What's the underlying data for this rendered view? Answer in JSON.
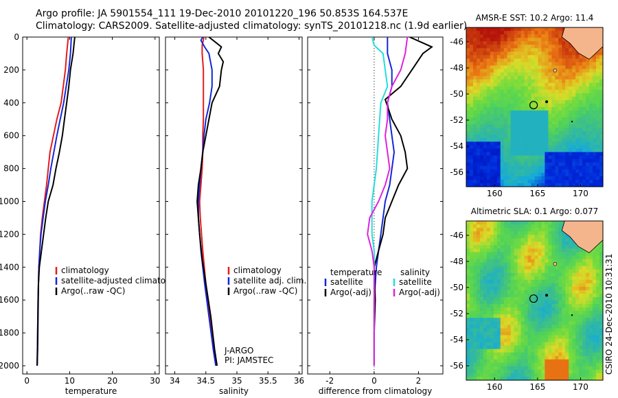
{
  "header": {
    "line1": "Argo profile: JA 5901554_111 19-Dec-2010 20101220_196 50.853S 164.537E",
    "line2": "Climatology: CARS2009. Satellite-adjusted climatology: synTS_20101218.nc (1.9d earlier)"
  },
  "depth_ticks": [
    "0",
    "200",
    "400",
    "600",
    "800",
    "1000",
    "1200",
    "1400",
    "1600",
    "1800",
    "2000"
  ],
  "colors": {
    "red": "#e21b1b",
    "blue": "#1226d6",
    "black": "#000000",
    "cyan": "#22dddd",
    "magenta": "#e020e0"
  },
  "chart_data": [
    {
      "type": "line",
      "xlabel": "temperature",
      "xlim": [
        -1,
        31
      ],
      "ylim": [
        2050,
        0
      ],
      "xticks": [
        0,
        10,
        20,
        30
      ],
      "xtick_labels": [
        "0",
        "10",
        "20",
        "30"
      ],
      "legend_placement": "lower-right",
      "series": [
        {
          "name": "climatology",
          "color": "red",
          "points": [
            [
              9.7,
              0
            ],
            [
              9.5,
              50
            ],
            [
              9.3,
              100
            ],
            [
              9,
              200
            ],
            [
              8.5,
              300
            ],
            [
              8,
              400
            ],
            [
              7,
              500
            ],
            [
              6.2,
              600
            ],
            [
              5.4,
              700
            ],
            [
              5,
              800
            ],
            [
              4.6,
              900
            ],
            [
              4.1,
              1000
            ],
            [
              3.6,
              1100
            ],
            [
              3.2,
              1200
            ],
            [
              3,
              1300
            ],
            [
              2.8,
              1400
            ],
            [
              2.6,
              1600
            ],
            [
              2.5,
              1800
            ],
            [
              2.4,
              2000
            ]
          ]
        },
        {
          "name": "satellite-adjusted climatology",
          "color": "blue",
          "points": [
            [
              10.4,
              0
            ],
            [
              10.2,
              100
            ],
            [
              9.8,
              200
            ],
            [
              9.2,
              300
            ],
            [
              8.6,
              400
            ],
            [
              7.8,
              500
            ],
            [
              7,
              600
            ],
            [
              6.3,
              700
            ],
            [
              5.6,
              800
            ],
            [
              5,
              900
            ],
            [
              4.3,
              1000
            ],
            [
              3.8,
              1100
            ],
            [
              3.3,
              1200
            ],
            [
              3,
              1300
            ],
            [
              2.8,
              1400
            ],
            [
              2.6,
              1600
            ],
            [
              2.5,
              1800
            ],
            [
              2.4,
              2000
            ]
          ]
        },
        {
          "name": "Argo(..raw -QC)",
          "color": "black",
          "points": [
            [
              11.2,
              0
            ],
            [
              11,
              50
            ],
            [
              10.8,
              100
            ],
            [
              10.5,
              150
            ],
            [
              10.2,
              200
            ],
            [
              9.8,
              300
            ],
            [
              9.3,
              400
            ],
            [
              8.8,
              500
            ],
            [
              8.3,
              600
            ],
            [
              7.6,
              700
            ],
            [
              6.8,
              800
            ],
            [
              6.1,
              900
            ],
            [
              5,
              1000
            ],
            [
              4.4,
              1100
            ],
            [
              3.9,
              1200
            ],
            [
              3.4,
              1300
            ],
            [
              2.9,
              1400
            ],
            [
              2.7,
              1500
            ],
            [
              2.6,
              1700
            ],
            [
              2.5,
              1900
            ],
            [
              2.4,
              2000
            ]
          ]
        }
      ],
      "legend": [
        "climatology",
        "satellite-adjusted climatology",
        "Argo(..raw -QC)"
      ]
    },
    {
      "type": "line",
      "xlabel": "salinity",
      "xlim": [
        33.85,
        36.05
      ],
      "ylim": [
        2050,
        0
      ],
      "xticks": [
        34,
        34.5,
        35,
        35.5,
        36
      ],
      "xtick_labels": [
        "34",
        "34.5",
        "35",
        "35.5",
        "36"
      ],
      "legend_placement": "lower-right",
      "series": [
        {
          "name": "climatology",
          "color": "red",
          "points": [
            [
              34.47,
              0
            ],
            [
              34.44,
              50
            ],
            [
              34.44,
              100
            ],
            [
              34.45,
              150
            ],
            [
              34.46,
              200
            ],
            [
              34.46,
              400
            ],
            [
              34.46,
              500
            ],
            [
              34.45,
              600
            ],
            [
              34.45,
              700
            ],
            [
              34.44,
              800
            ],
            [
              34.42,
              900
            ],
            [
              34.4,
              1000
            ],
            [
              34.41,
              1100
            ],
            [
              34.45,
              1300
            ],
            [
              34.5,
              1500
            ],
            [
              34.56,
              1700
            ],
            [
              34.62,
              1900
            ],
            [
              34.66,
              2000
            ]
          ]
        },
        {
          "name": "satellite adj. clim.",
          "color": "blue",
          "points": [
            [
              34.45,
              0
            ],
            [
              34.42,
              20
            ],
            [
              34.48,
              60
            ],
            [
              34.55,
              100
            ],
            [
              34.6,
              200
            ],
            [
              34.6,
              300
            ],
            [
              34.56,
              400
            ],
            [
              34.5,
              500
            ],
            [
              34.47,
              600
            ],
            [
              34.45,
              700
            ],
            [
              34.42,
              800
            ],
            [
              34.4,
              900
            ],
            [
              34.38,
              1000
            ],
            [
              34.38,
              1100
            ],
            [
              34.42,
              1300
            ],
            [
              34.48,
              1500
            ],
            [
              34.55,
              1700
            ],
            [
              34.62,
              1900
            ],
            [
              34.66,
              2000
            ]
          ]
        },
        {
          "name": "Argo(..raw -QC)",
          "color": "black",
          "points": [
            [
              34.55,
              0
            ],
            [
              34.65,
              30
            ],
            [
              34.75,
              60
            ],
            [
              34.7,
              100
            ],
            [
              34.78,
              150
            ],
            [
              34.75,
              200
            ],
            [
              34.72,
              300
            ],
            [
              34.6,
              400
            ],
            [
              34.55,
              500
            ],
            [
              34.5,
              600
            ],
            [
              34.45,
              700
            ],
            [
              34.42,
              800
            ],
            [
              34.38,
              900
            ],
            [
              34.36,
              1000
            ],
            [
              34.38,
              1100
            ],
            [
              34.4,
              1200
            ],
            [
              34.44,
              1350
            ],
            [
              34.5,
              1500
            ],
            [
              34.58,
              1700
            ],
            [
              34.64,
              1900
            ],
            [
              34.68,
              2000
            ]
          ]
        }
      ],
      "legend": [
        "climatology",
        "satellite adj. clim.",
        "Argo(..raw -QC)"
      ],
      "annotation": [
        "J-ARGO",
        "PI: JAMSTEC"
      ]
    },
    {
      "type": "line",
      "xlabel": "difference from climatology",
      "xlim": [
        -3,
        3.1
      ],
      "ylim": [
        2050,
        0
      ],
      "xticks": [
        -2,
        0,
        2
      ],
      "xtick_labels": [
        "-2",
        "0",
        "2"
      ],
      "legend_placement": "lower-center",
      "series": [
        {
          "name": "temperature satellite",
          "color": "blue",
          "points": [
            [
              0.6,
              0
            ],
            [
              0.6,
              100
            ],
            [
              0.8,
              200
            ],
            [
              0.8,
              300
            ],
            [
              0.6,
              400
            ],
            [
              0.8,
              600
            ],
            [
              0.9,
              700
            ],
            [
              0.7,
              900
            ],
            [
              0.5,
              1000
            ],
            [
              0.3,
              1200
            ],
            [
              0.1,
              1400
            ],
            [
              0,
              1600
            ],
            [
              0,
              2000
            ]
          ]
        },
        {
          "name": "temperature Argo(-adj)",
          "color": "black",
          "points": [
            [
              1.6,
              0
            ],
            [
              2.1,
              30
            ],
            [
              2.6,
              60
            ],
            [
              2.2,
              100
            ],
            [
              1.7,
              200
            ],
            [
              1.2,
              300
            ],
            [
              0.5,
              380
            ],
            [
              0.8,
              500
            ],
            [
              1.2,
              600
            ],
            [
              1.4,
              700
            ],
            [
              1.5,
              800
            ],
            [
              1.1,
              900
            ],
            [
              0.8,
              1000
            ],
            [
              0.5,
              1100
            ],
            [
              0.4,
              1200
            ],
            [
              0.2,
              1300
            ],
            [
              0,
              1400
            ],
            [
              0.05,
              1600
            ],
            [
              0,
              1800
            ],
            [
              0,
              2000
            ]
          ]
        },
        {
          "name": "salinity satellite",
          "color": "cyan",
          "points": [
            [
              -0.1,
              0
            ],
            [
              0,
              50
            ],
            [
              0.4,
              100
            ],
            [
              0.5,
              200
            ],
            [
              0.6,
              300
            ],
            [
              0.3,
              400
            ],
            [
              0.2,
              600
            ],
            [
              0.1,
              800
            ],
            [
              0,
              900
            ],
            [
              -0.1,
              1000
            ],
            [
              -0.1,
              1200
            ],
            [
              0,
              1300
            ],
            [
              0,
              1400
            ],
            [
              0,
              1600
            ],
            [
              0,
              2000
            ]
          ]
        },
        {
          "name": "salinity Argo(-adj)",
          "color": "magenta",
          "points": [
            [
              1.5,
              0
            ],
            [
              1.4,
              100
            ],
            [
              1.2,
              200
            ],
            [
              0.8,
              300
            ],
            [
              0.6,
              400
            ],
            [
              0.6,
              500
            ],
            [
              0.5,
              600
            ],
            [
              0.6,
              700
            ],
            [
              0.7,
              800
            ],
            [
              0.5,
              900
            ],
            [
              0.2,
              1000
            ],
            [
              -0.2,
              1100
            ],
            [
              -0.3,
              1200
            ],
            [
              -0.1,
              1300
            ],
            [
              0,
              1400
            ],
            [
              0,
              1600
            ],
            [
              0,
              2000
            ]
          ]
        }
      ],
      "legend": {
        "temperature": "temperature",
        "salinity": "salinity",
        "temp_items": [
          "satellite",
          "Argo(-adj)"
        ],
        "sal_items": [
          "satellite",
          "Argo(-adj)"
        ]
      }
    }
  ],
  "maps": [
    {
      "title": "AMSR-E SST: 10.2 Argo: 11.4",
      "xticks": [
        "160",
        "165",
        "170"
      ],
      "yticks": [
        "-46",
        "-48",
        "-50",
        "-52",
        "-54",
        "-56"
      ]
    },
    {
      "title": "Altimetric SLA: 0.1 Argo: 0.077",
      "xticks": [
        "160",
        "165",
        "170"
      ],
      "yticks": [
        "-46",
        "-48",
        "-50",
        "-52",
        "-54",
        "-56"
      ]
    }
  ],
  "watermark": "CSIRO 24-Dec-2010 10:31:31"
}
